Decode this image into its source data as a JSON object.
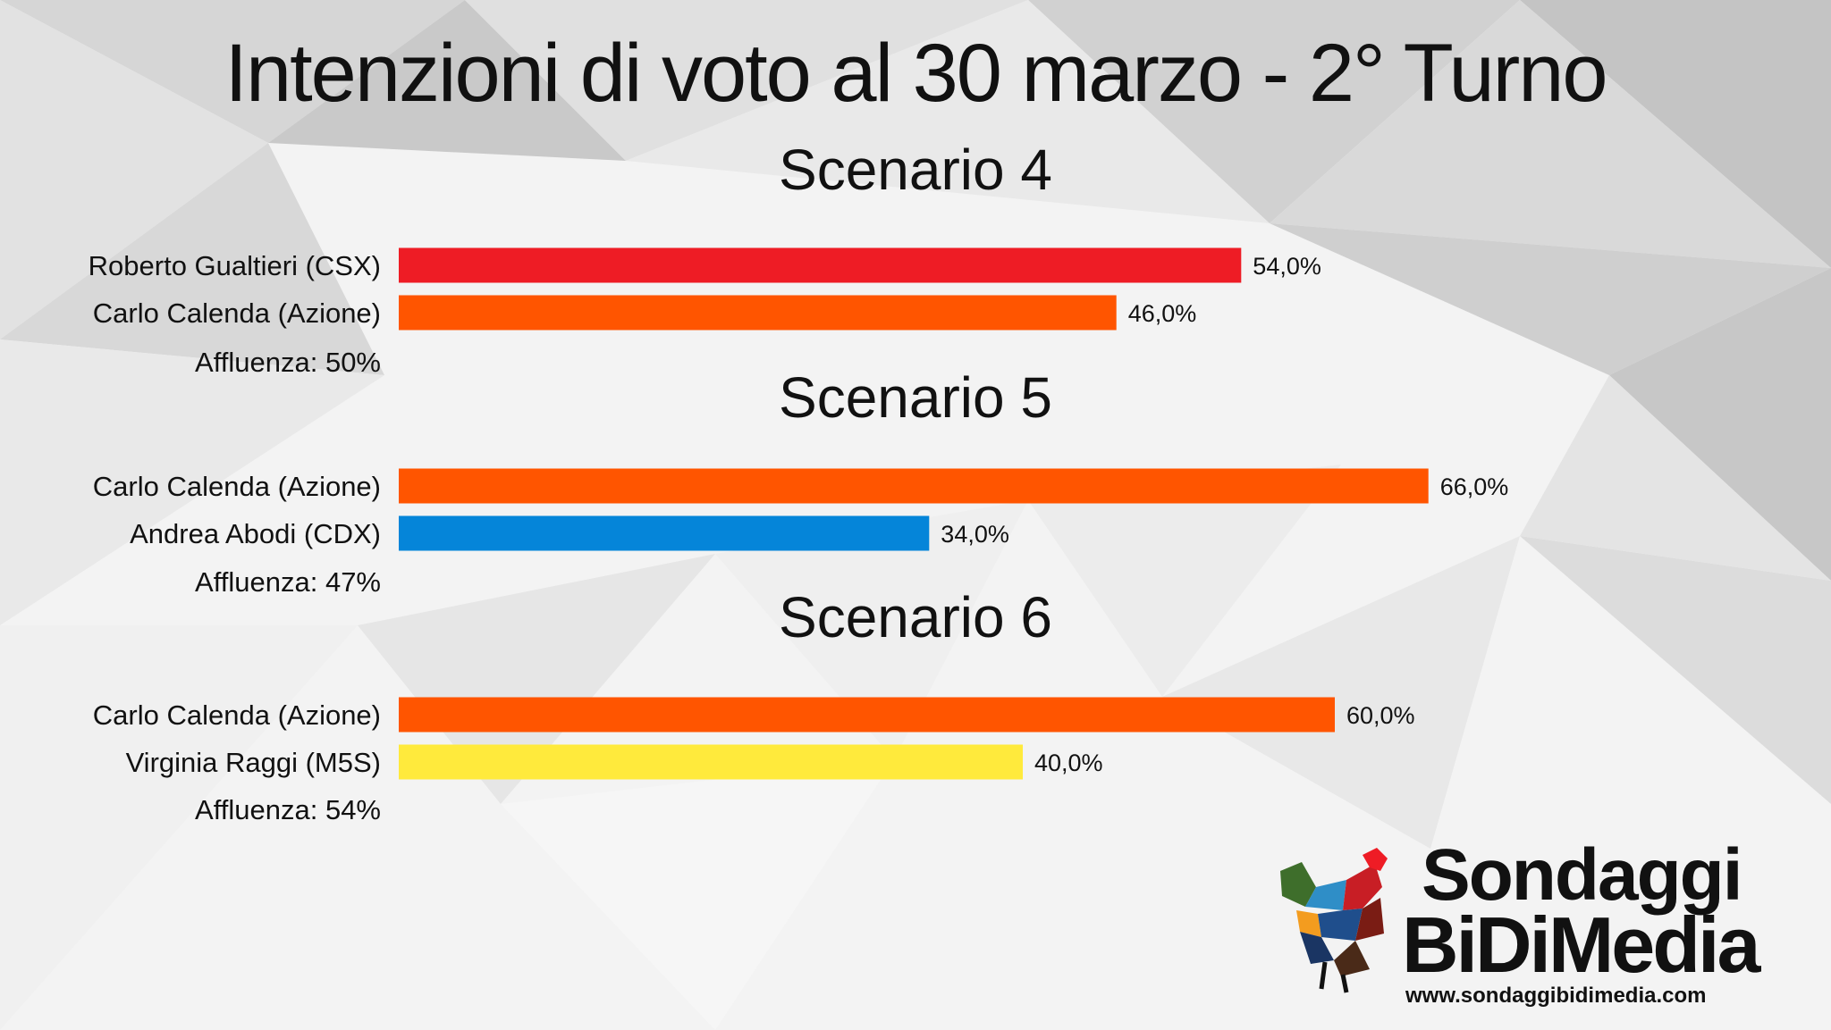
{
  "title": "Intenzioni di voto al 30 marzo - 2° Turno",
  "chart_data": [
    {
      "type": "bar",
      "title": "Scenario 4",
      "categories": [
        "Roberto Gualtieri (CSX)",
        "Carlo Calenda (Azione)"
      ],
      "values": [
        54.0,
        46.0
      ],
      "value_labels": [
        "54,0%",
        "46,0%"
      ],
      "colors": [
        "#ee1c25",
        "#ff5500"
      ],
      "note": "Affluenza: 50%",
      "xlim": [
        0,
        100
      ]
    },
    {
      "type": "bar",
      "title": "Scenario 5",
      "categories": [
        "Carlo Calenda (Azione)",
        "Andrea Abodi (CDX)"
      ],
      "values": [
        66.0,
        34.0
      ],
      "value_labels": [
        "66,0%",
        "34,0%"
      ],
      "colors": [
        "#ff5500",
        "#0585d9"
      ],
      "note": "Affluenza: 47%",
      "xlim": [
        0,
        100
      ]
    },
    {
      "type": "bar",
      "title": "Scenario 6",
      "categories": [
        "Carlo Calenda (Azione)",
        "Virginia Raggi (M5S)"
      ],
      "values": [
        60.0,
        40.0
      ],
      "value_labels": [
        "60,0%",
        "40,0%"
      ],
      "colors": [
        "#ff5500",
        "#ffea3c"
      ],
      "note": "Affluenza: 54%",
      "xlim": [
        0,
        100
      ]
    }
  ],
  "logo": {
    "word1": "Sondaggi",
    "word2": "BiDiMedia",
    "url": "www.sondaggibidimedia.com"
  }
}
